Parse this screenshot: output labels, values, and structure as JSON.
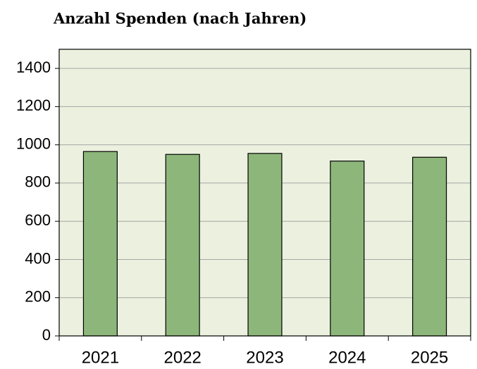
{
  "chart_data": {
    "type": "bar",
    "title": "Anzahl Spenden (nach Jahren)",
    "categories": [
      "2021",
      "2022",
      "2023",
      "2024",
      "2025"
    ],
    "values": [
      965,
      950,
      955,
      915,
      935
    ],
    "color": "#8db77a",
    "ylim": [
      0,
      1500
    ],
    "yticks": [
      0,
      200,
      400,
      600,
      800,
      1000,
      1200,
      1400
    ],
    "grid": true
  }
}
